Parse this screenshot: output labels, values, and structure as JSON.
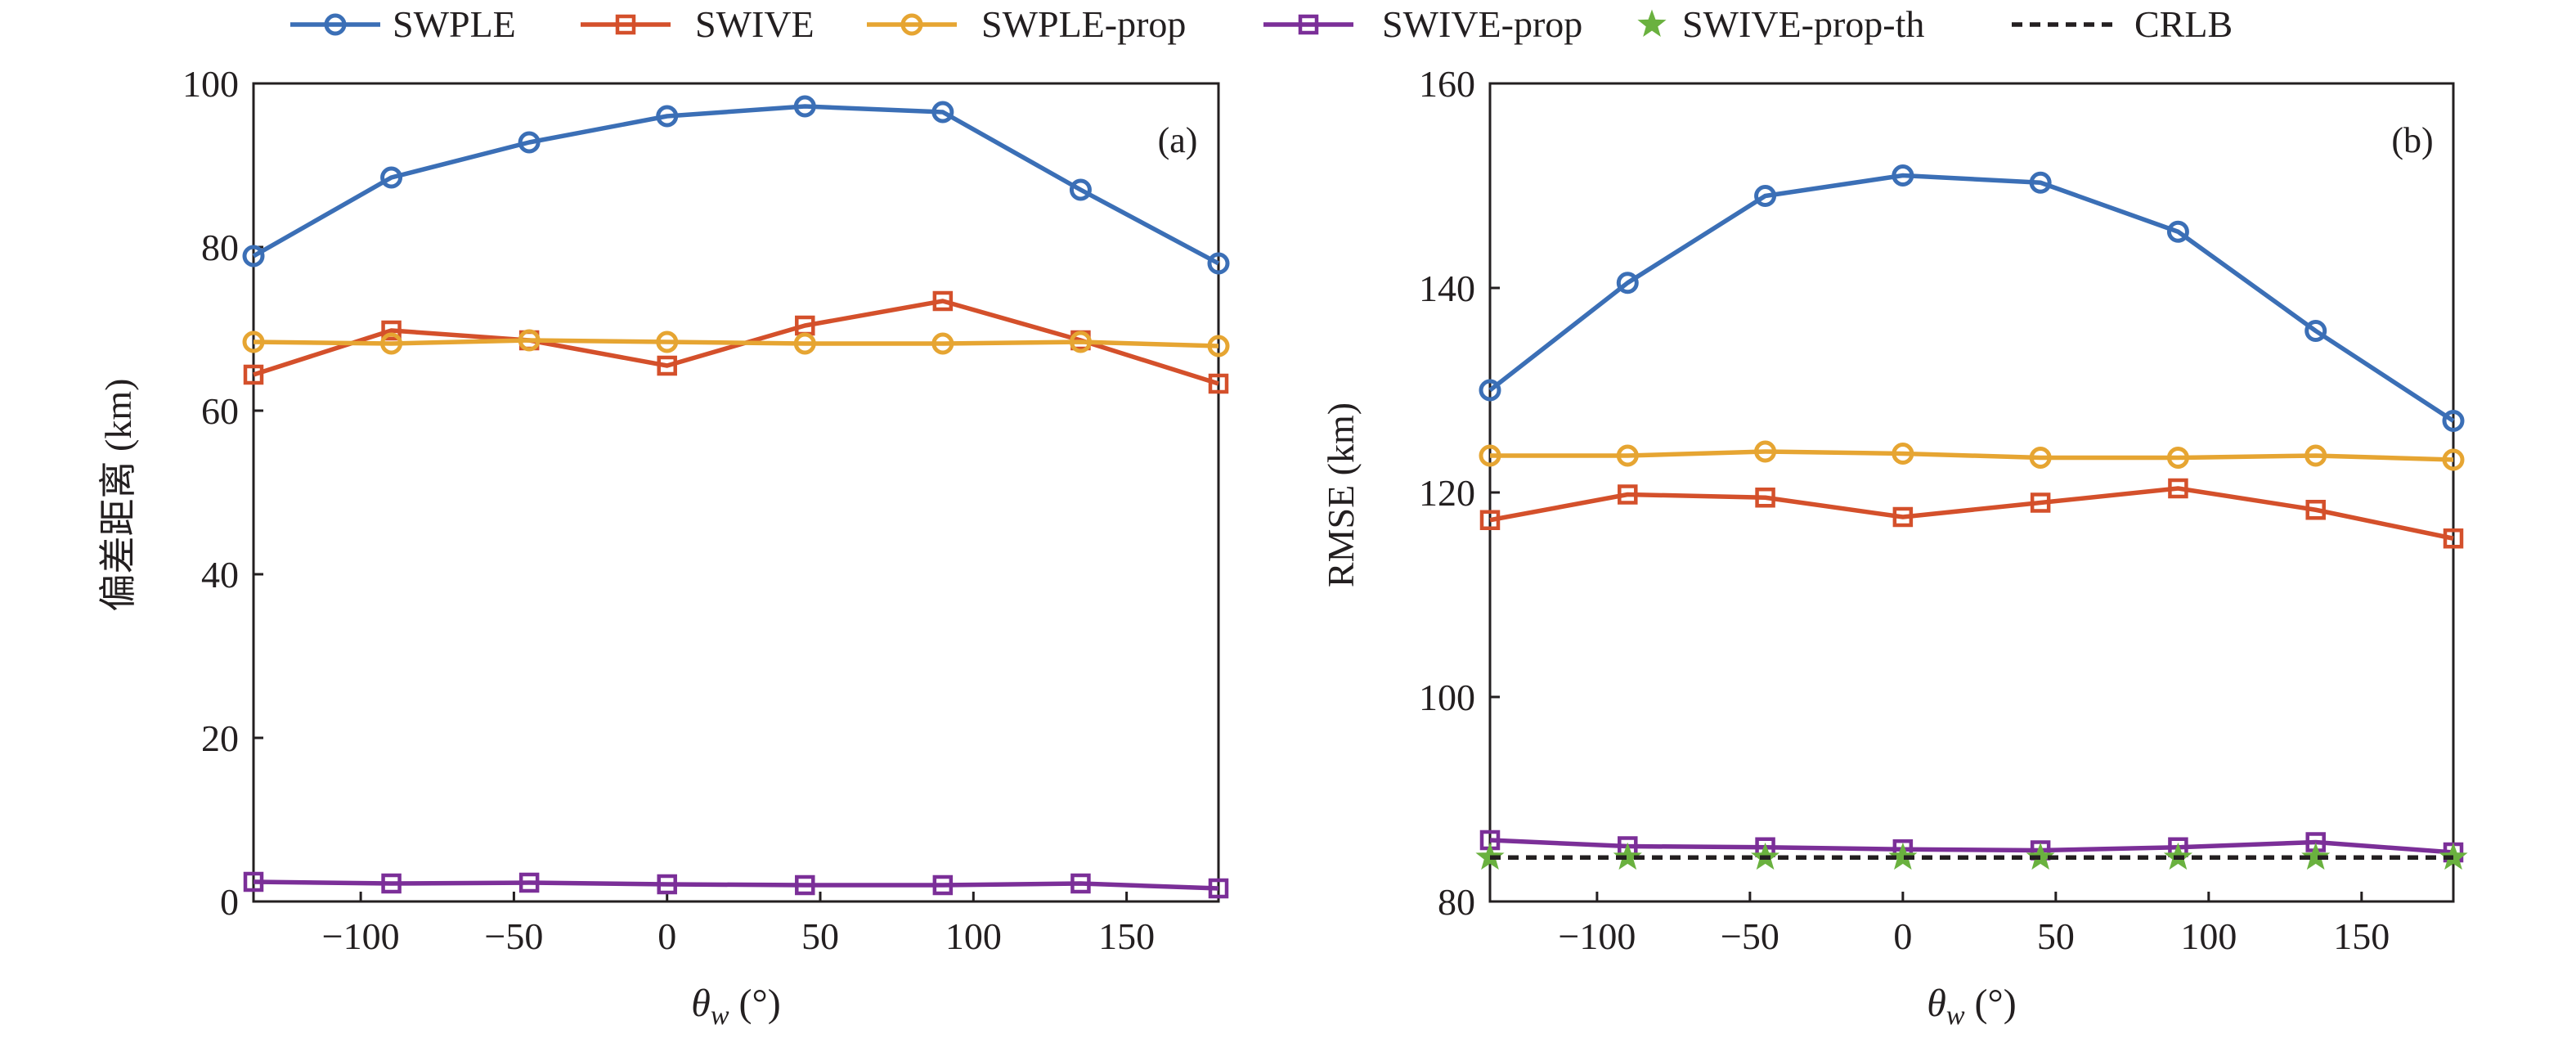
{
  "legend": {
    "items": [
      {
        "label": "SWPLE",
        "color": "#3b6fb6",
        "marker": "circle",
        "line": "solid"
      },
      {
        "label": "SWIVE",
        "color": "#d4502b",
        "marker": "square",
        "line": "solid"
      },
      {
        "label": "SWPLE-prop",
        "color": "#e6a532",
        "marker": "circle",
        "line": "solid"
      },
      {
        "label": "SWIVE-prop",
        "color": "#7b2f98",
        "marker": "square",
        "line": "solid"
      },
      {
        "label": "SWIVE-prop-th",
        "color": "#6ab13f",
        "marker": "star",
        "line": "none"
      },
      {
        "label": "CRLB",
        "color": "#231f20",
        "marker": "none",
        "line": "dashed"
      }
    ]
  },
  "chart_data": [
    {
      "type": "line",
      "panel_label": "(a)",
      "xlabel": "θw (°)",
      "ylabel": "偏差距离 (km)",
      "xlim": [
        -135,
        180
      ],
      "ylim": [
        0,
        100
      ],
      "xticks": [
        -100,
        -50,
        0,
        50,
        100,
        150
      ],
      "xtick_labels": [
        "−100",
        "−50",
        "0",
        "50",
        "100",
        "150"
      ],
      "yticks": [
        0,
        20,
        40,
        60,
        80,
        100
      ],
      "ytick_labels": [
        "0",
        "20",
        "40",
        "60",
        "80",
        "100"
      ],
      "grid": false,
      "x": [
        -135,
        -90,
        -45,
        0,
        45,
        90,
        135,
        180
      ],
      "series": [
        {
          "name": "SWPLE",
          "values": [
            78.9,
            88.5,
            92.8,
            96.0,
            97.2,
            96.5,
            87.0,
            78.0
          ]
        },
        {
          "name": "SWIVE",
          "values": [
            64.4,
            69.8,
            68.6,
            65.5,
            70.4,
            73.4,
            68.6,
            63.3
          ]
        },
        {
          "name": "SWPLE-prop",
          "values": [
            68.4,
            68.2,
            68.6,
            68.4,
            68.2,
            68.2,
            68.4,
            67.9
          ]
        },
        {
          "name": "SWIVE-prop",
          "values": [
            2.4,
            2.2,
            2.3,
            2.1,
            2.0,
            2.0,
            2.2,
            1.6
          ]
        }
      ]
    },
    {
      "type": "line",
      "panel_label": "(b)",
      "xlabel": "θw (°)",
      "ylabel": "RMSE (km)",
      "xlim": [
        -135,
        180
      ],
      "ylim": [
        80,
        160
      ],
      "xticks": [
        -100,
        -50,
        0,
        50,
        100,
        150
      ],
      "xtick_labels": [
        "−100",
        "−50",
        "0",
        "50",
        "100",
        "150"
      ],
      "yticks": [
        80,
        100,
        120,
        140,
        160
      ],
      "ytick_labels": [
        "80",
        "100",
        "120",
        "140",
        "160"
      ],
      "grid": false,
      "x": [
        -135,
        -90,
        -45,
        0,
        45,
        90,
        135,
        180
      ],
      "series": [
        {
          "name": "SWPLE",
          "values": [
            130.0,
            140.5,
            149.0,
            151.0,
            150.3,
            145.5,
            135.8,
            127.0
          ]
        },
        {
          "name": "SWIVE",
          "values": [
            117.3,
            119.8,
            119.5,
            117.6,
            119.0,
            120.4,
            118.3,
            115.5
          ]
        },
        {
          "name": "SWPLE-prop",
          "values": [
            123.6,
            123.6,
            124.0,
            123.8,
            123.4,
            123.4,
            123.6,
            123.2
          ]
        },
        {
          "name": "SWIVE-prop",
          "values": [
            86.0,
            85.4,
            85.3,
            85.1,
            85.0,
            85.3,
            85.8,
            84.8
          ]
        },
        {
          "name": "SWIVE-prop-th",
          "values": [
            84.3,
            84.3,
            84.3,
            84.3,
            84.3,
            84.3,
            84.3,
            84.3
          ]
        },
        {
          "name": "CRLB",
          "values": [
            84.3,
            84.3,
            84.3,
            84.3,
            84.3,
            84.3,
            84.3,
            84.3
          ]
        }
      ]
    }
  ]
}
